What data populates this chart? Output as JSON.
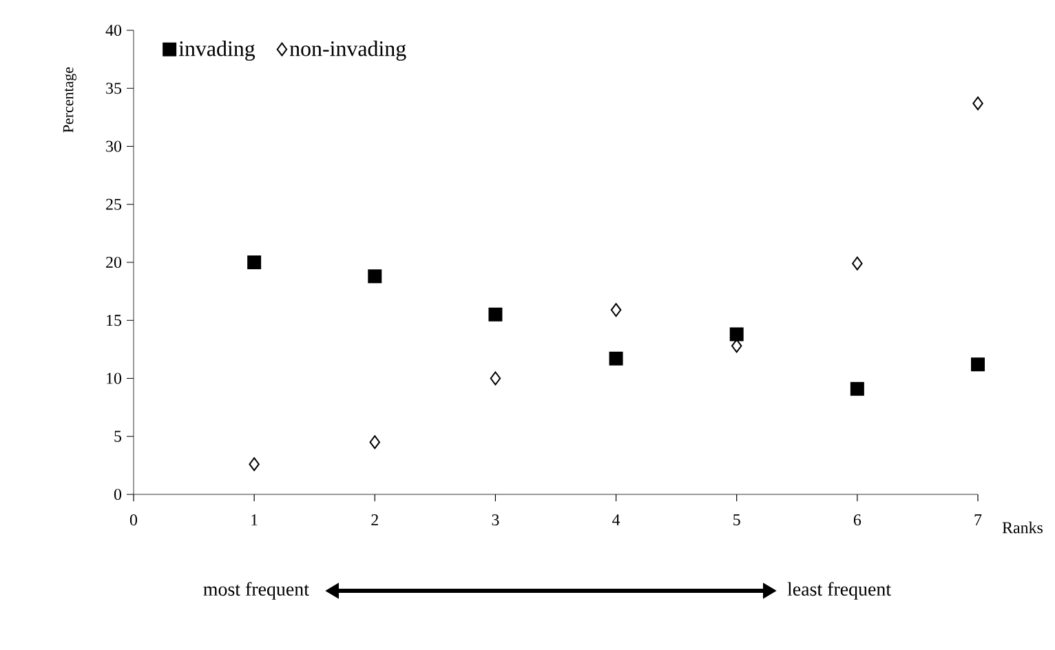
{
  "chart_data": {
    "type": "scatter",
    "xlabel": "Ranks",
    "ylabel": "Percentage",
    "x": [
      1,
      2,
      3,
      4,
      5,
      6,
      7
    ],
    "series": [
      {
        "name": "invading",
        "color": "#000000",
        "marker": "square",
        "values": [
          20.0,
          18.8,
          15.5,
          11.7,
          13.8,
          9.1,
          11.2
        ]
      },
      {
        "name": "non-invading",
        "color": "#000000",
        "marker": "diamond",
        "values": [
          2.6,
          4.5,
          10.0,
          15.9,
          12.8,
          19.9,
          33.7
        ]
      }
    ],
    "xlim": [
      0,
      7
    ],
    "ylim": [
      0,
      40
    ],
    "xticks": [
      0,
      1,
      2,
      3,
      4,
      5,
      6,
      7
    ],
    "yticks": [
      0,
      5,
      10,
      15,
      20,
      25,
      30,
      35,
      40
    ],
    "legend": "top left",
    "grid": false,
    "annotations": [
      "most frequent",
      "least frequent"
    ]
  }
}
